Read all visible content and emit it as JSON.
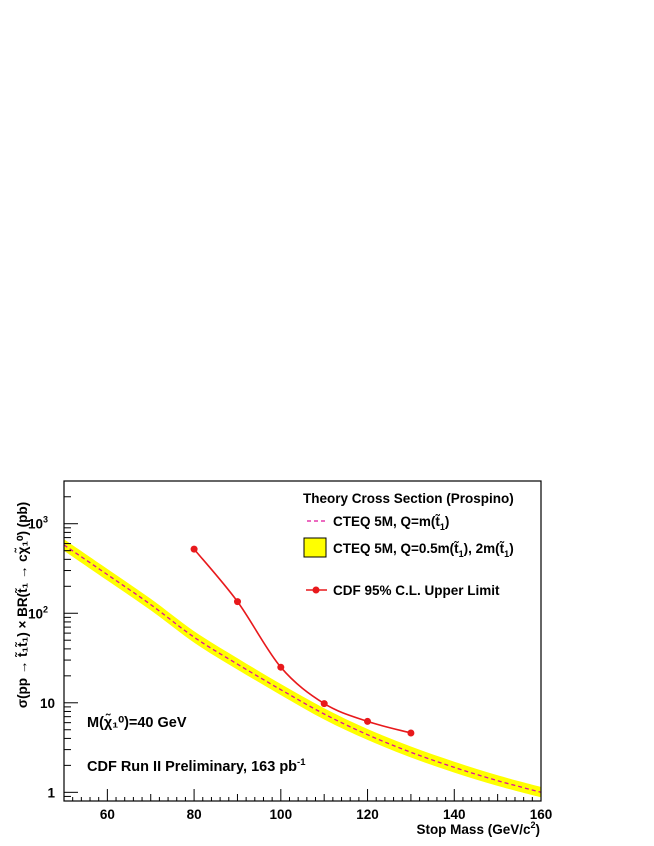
{
  "chart_data": {
    "type": "line",
    "xlabel": "Stop Mass (GeV/c",
    "xlabel_sup": "2",
    "xlabel_tail": ")",
    "ylabel": "σ(pp → t̃₁t̃₁) × BR(t̃₁ → cχ̃₁⁰) (pb)",
    "xlim": [
      50,
      160
    ],
    "ylim": [
      0.8,
      3000
    ],
    "yscale": "log",
    "x_ticks": [
      60,
      80,
      100,
      120,
      140,
      160
    ],
    "y_ticks": [
      {
        "value": 1,
        "label": "1"
      },
      {
        "value": 10,
        "label": "10"
      },
      {
        "value": 100,
        "label": "10",
        "sup": "2"
      },
      {
        "value": 1000,
        "label": "10",
        "sup": "3"
      }
    ],
    "legend": {
      "title": "Theory Cross Section (Prospino)",
      "entries": [
        {
          "key": "central",
          "text": "CTEQ 5M, Q=m(t̃",
          "sub": "1",
          "tail": ")"
        },
        {
          "key": "band",
          "text": "CTEQ 5M, Q=0.5m(t̃",
          "sub": "1",
          "tail": "), 2m(t̃",
          "sub2": "1",
          "tail2": ")"
        },
        {
          "key": "limit",
          "text": "CDF 95% C.L. Upper Limit"
        }
      ]
    },
    "annotations": {
      "neutralino": "M(χ̃₁⁰)=40 GeV",
      "run": "CDF Run II Preliminary, 163 pb",
      "run_sup": "-1"
    },
    "series": [
      {
        "name": "CTEQ 5M, Q=m(t̃1)",
        "style": "dashed",
        "color": "#e0109a",
        "x": [
          50,
          60,
          70,
          80,
          90,
          100,
          110,
          120,
          130,
          140,
          150,
          160
        ],
        "y": [
          580,
          270,
          125,
          54,
          27,
          14,
          7.5,
          4.4,
          2.8,
          1.9,
          1.35,
          1.0
        ]
      },
      {
        "name": "CTEQ 5M, Q=0.5m(t̃1), 2m(t̃1)",
        "style": "band",
        "color": "#ffff00",
        "x": [
          50,
          60,
          70,
          80,
          90,
          100,
          110,
          120,
          130,
          140,
          150,
          160
        ],
        "y_low": [
          500,
          232,
          108,
          47,
          23.5,
          12.2,
          6.5,
          3.85,
          2.45,
          1.66,
          1.18,
          0.88
        ],
        "y_high": [
          670,
          312,
          145,
          63,
          31.5,
          16.2,
          8.7,
          5.1,
          3.25,
          2.2,
          1.55,
          1.15
        ]
      },
      {
        "name": "CDF 95% C.L. Upper Limit",
        "style": "line-marker",
        "color": "#e8191c",
        "x": [
          80,
          90,
          100,
          110,
          120,
          130
        ],
        "y": [
          520,
          135,
          25,
          9.8,
          6.2,
          4.6
        ]
      }
    ]
  }
}
